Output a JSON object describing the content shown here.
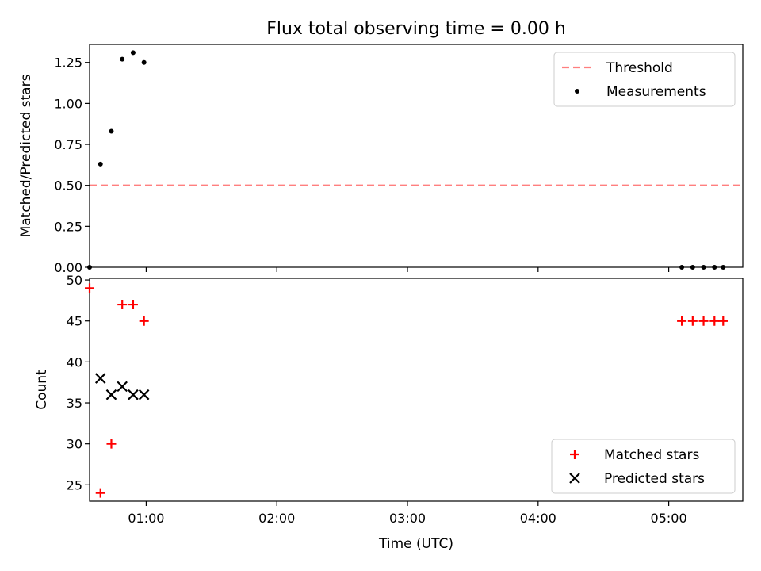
{
  "figure": {
    "title": "Flux total observing time = 0.00 h",
    "xlabel": "Time (UTC)"
  },
  "colors": {
    "threshold": "#ff7f7f",
    "measurements": "#000000",
    "matched": "#ff0000",
    "predicted": "#000000"
  },
  "chart_data": [
    {
      "type": "scatter",
      "ylabel": "Matched/Predicted stars",
      "xlim": [
        "00:34",
        "05:34"
      ],
      "ylim": [
        0,
        1.36
      ],
      "xticks": [
        "01:00",
        "02:00",
        "03:00",
        "04:00",
        "05:00"
      ],
      "xtick_labels_shown": false,
      "yticks": [
        0.0,
        0.25,
        0.5,
        0.75,
        1.0,
        1.25
      ],
      "ytick_labels": [
        "0.00",
        "0.25",
        "0.50",
        "0.75",
        "1.00",
        "1.25"
      ],
      "legend_position": "upper right",
      "series": [
        {
          "name": "Threshold",
          "style": "dashed-line",
          "x": [
            "00:34",
            "05:33"
          ],
          "y": [
            0.5,
            0.5
          ]
        },
        {
          "name": "Measurements",
          "style": "dot",
          "x": [
            "00:34",
            "00:39",
            "00:44",
            "00:49",
            "00:54",
            "00:59",
            "05:06",
            "05:11",
            "05:16",
            "05:21",
            "05:25"
          ],
          "y": [
            0.0,
            0.63,
            0.83,
            1.27,
            1.31,
            1.25,
            0.0,
            0.0,
            0.0,
            0.0,
            0.0
          ]
        }
      ]
    },
    {
      "type": "scatter",
      "ylabel": "Count",
      "xlim": [
        "00:34",
        "05:34"
      ],
      "ylim": [
        23,
        50.2
      ],
      "xticks": [
        "01:00",
        "02:00",
        "03:00",
        "04:00",
        "05:00"
      ],
      "xtick_labels": [
        "01:00",
        "02:00",
        "03:00",
        "04:00",
        "05:00"
      ],
      "yticks": [
        25,
        30,
        35,
        40,
        45,
        50
      ],
      "ytick_labels": [
        "25",
        "30",
        "35",
        "40",
        "45",
        "50"
      ],
      "legend_position": "lower right",
      "series": [
        {
          "name": "Matched stars",
          "style": "plus",
          "x": [
            "00:34",
            "00:39",
            "00:44",
            "00:49",
            "00:54",
            "00:59",
            "05:06",
            "05:11",
            "05:16",
            "05:21",
            "05:25"
          ],
          "y": [
            49,
            24,
            30,
            47,
            47,
            45,
            45,
            45,
            45,
            45,
            45
          ]
        },
        {
          "name": "Predicted stars",
          "style": "x",
          "x": [
            "00:39",
            "00:44",
            "00:49",
            "00:54",
            "00:59"
          ],
          "y": [
            38,
            36,
            37,
            36,
            36
          ]
        }
      ]
    }
  ]
}
